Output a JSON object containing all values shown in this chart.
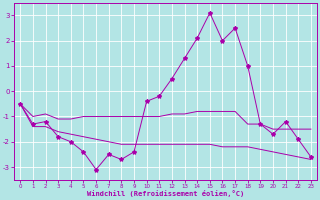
{
  "xlabel": "Windchill (Refroidissement éolien,°C)",
  "xlim": [
    -0.5,
    23.5
  ],
  "ylim": [
    -3.5,
    3.5
  ],
  "xticks": [
    0,
    1,
    2,
    3,
    4,
    5,
    6,
    7,
    8,
    9,
    10,
    11,
    12,
    13,
    14,
    15,
    16,
    17,
    18,
    19,
    20,
    21,
    22,
    23
  ],
  "yticks": [
    -3,
    -2,
    -1,
    0,
    1,
    2,
    3
  ],
  "background_color": "#b3e5e5",
  "line_color": "#aa00aa",
  "grid_color": "#ffffff",
  "main_y": [
    -0.5,
    -1.3,
    -1.2,
    -1.8,
    -2.0,
    -2.4,
    -3.1,
    -2.5,
    -2.7,
    -2.4,
    -0.4,
    -0.2,
    0.5,
    1.3,
    2.1,
    3.1,
    2.0,
    2.5,
    1.0,
    -1.3,
    -1.7,
    -1.2,
    -1.9,
    -2.6
  ],
  "upper_y": [
    -0.5,
    -1.0,
    -0.9,
    -1.1,
    -1.1,
    -1.0,
    -1.0,
    -1.0,
    -1.0,
    -1.0,
    -1.0,
    -1.0,
    -0.9,
    -0.9,
    -0.8,
    -0.8,
    -0.8,
    -0.8,
    -1.3,
    -1.3,
    -1.5,
    -1.5,
    -1.5,
    -1.5
  ],
  "lower_y": [
    -0.5,
    -1.4,
    -1.4,
    -1.6,
    -1.7,
    -1.8,
    -1.9,
    -2.0,
    -2.1,
    -2.1,
    -2.1,
    -2.1,
    -2.1,
    -2.1,
    -2.1,
    -2.1,
    -2.2,
    -2.2,
    -2.2,
    -2.3,
    -2.4,
    -2.5,
    -2.6,
    -2.7
  ]
}
